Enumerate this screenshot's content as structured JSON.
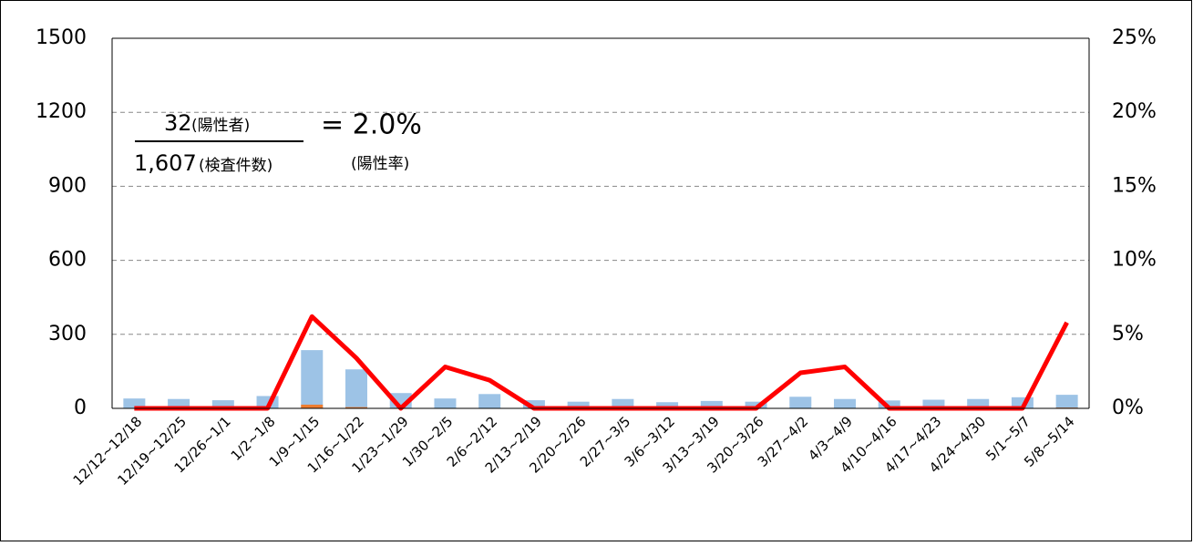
{
  "chart_data": {
    "type": "bar_line",
    "categories": [
      "12/12~12/18",
      "12/19~12/25",
      "12/26~1/1",
      "1/2~1/8",
      "1/9~1/15",
      "1/16~1/22",
      "1/23~1/29",
      "1/30~2/5",
      "2/6~2/12",
      "2/13~2/19",
      "2/20~2/26",
      "2/27~3/5",
      "3/6~3/12",
      "3/13~3/19",
      "3/20~3/26",
      "3/27~4/2",
      "4/3~4/9",
      "4/10~4/16",
      "4/17~4/23",
      "4/24~4/30",
      "5/1~5/7",
      "5/8~5/14"
    ],
    "series": [
      {
        "type": "bar",
        "color": "#9dc3e6",
        "values": [
          40,
          38,
          33,
          50,
          236,
          158,
          62,
          40,
          58,
          33,
          27,
          38,
          25,
          30,
          27,
          47,
          38,
          32,
          35,
          38,
          45,
          55
        ]
      },
      {
        "type": "bar",
        "color": "#ed7d31",
        "values": [
          0,
          0,
          0,
          0,
          15,
          5,
          0,
          1,
          1,
          0,
          0,
          0,
          0,
          0,
          0,
          1,
          1,
          0,
          0,
          0,
          0,
          3
        ]
      },
      {
        "type": "line",
        "axis": "y2",
        "color": "#ff0000",
        "values": [
          0,
          0,
          0,
          0,
          6.2,
          3.4,
          0,
          2.8,
          1.9,
          0,
          0,
          0,
          0,
          0,
          0,
          2.4,
          2.8,
          0,
          0,
          0,
          0,
          5.8
        ]
      }
    ],
    "ylim": [
      0,
      1500
    ],
    "yticks": [
      0,
      300,
      600,
      900,
      1200,
      1500
    ],
    "y2lim": [
      0,
      25
    ],
    "y2ticks": [
      {
        "value": 0,
        "label": "0%"
      },
      {
        "value": 5,
        "label": "5%"
      },
      {
        "value": 10,
        "label": "10%"
      },
      {
        "value": 15,
        "label": "15%"
      },
      {
        "value": 20,
        "label": "20%"
      },
      {
        "value": 25,
        "label": "25%"
      }
    ],
    "grid": true,
    "annotations": {
      "positives": "32",
      "positives_label": "(陽性者)",
      "tests": "1,607",
      "tests_label": "(検査件数)",
      "rate": "= 2.0%",
      "rate_label": "(陽性率)"
    }
  }
}
